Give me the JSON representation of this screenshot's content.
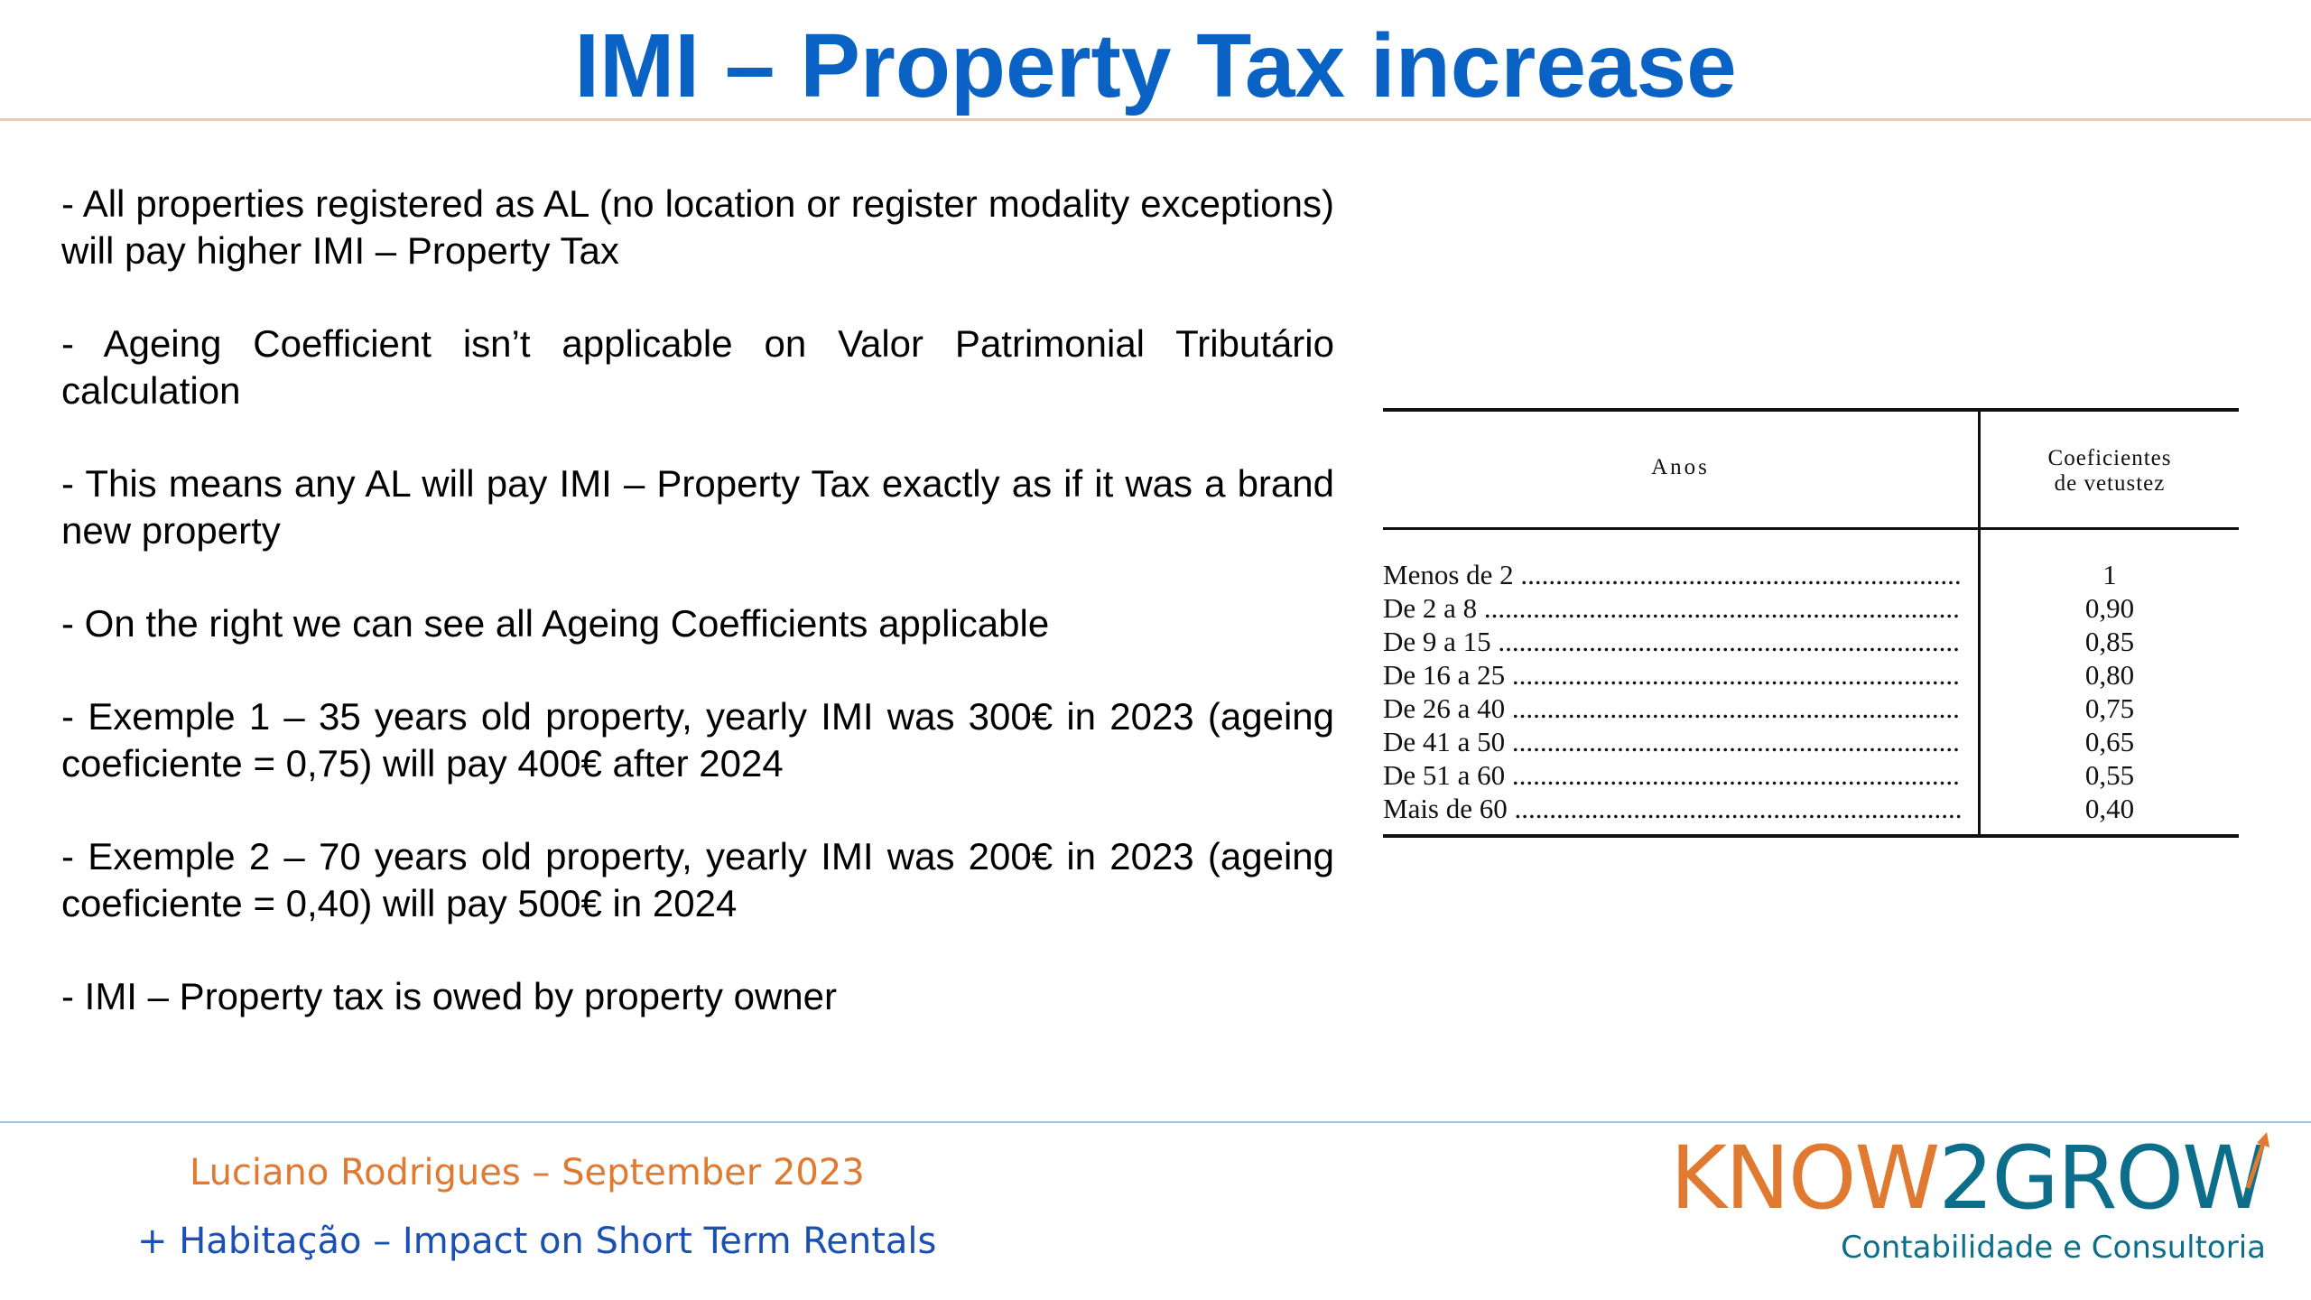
{
  "title": "IMI – Property Tax increase",
  "bullets": [
    "- All properties registered as AL (no location or register modality exceptions) will pay higher IMI – Property Tax",
    "- Ageing Coefficient isn’t applicable on Valor Patrimonial Tributário calculation",
    "- This means any AL will pay IMI – Property Tax exactly as if it was a brand new property",
    "- On the right we can see all Ageing Coefficients applicable",
    "- Exemple 1 – 35 years old property, yearly IMI was 300€ in 2023 (ageing coeficiente = 0,75) will pay 400€ after 2024",
    "- Exemple 2 – 70 years old property, yearly IMI was 200€ in 2023 (ageing coeficiente = 0,40) will pay 500€ in 2024",
    "- IMI – Property tax is owed by property owner"
  ],
  "table": {
    "header_years": "Anos",
    "header_coef_line1": "Coeficientes",
    "header_coef_line2": "de vetustez",
    "rows": [
      {
        "label": "Menos de 2",
        "value": "1"
      },
      {
        "label": "De 2 a 8",
        "value": "0,90"
      },
      {
        "label": "De 9 a 15",
        "value": "0,85"
      },
      {
        "label": "De 16 a 25",
        "value": "0,80"
      },
      {
        "label": "De 26 a 40",
        "value": "0,75"
      },
      {
        "label": "De 41 a 50",
        "value": "0,65"
      },
      {
        "label": "De 51 a 60",
        "value": "0,55"
      },
      {
        "label": "Mais de 60",
        "value": "0,40"
      }
    ]
  },
  "footer": {
    "author": "Luciano Rodrigues – September 2023",
    "subtitle": "+ Habitação – Impact on Short Term Rentals"
  },
  "logo": {
    "word_know": "KNOW",
    "word_two": "2",
    "word_grow": "GROW",
    "tagline": "Contabilidade e Consultoria"
  },
  "colors": {
    "title": "#0a63c4",
    "author": "#e07a30",
    "subtitle": "#1a4fb4",
    "logo_orange": "#e07a30",
    "logo_teal": "#0c6e8a"
  }
}
